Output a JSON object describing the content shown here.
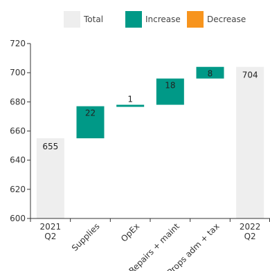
{
  "chart_data": {
    "type": "waterfall",
    "legend": {
      "position": "top",
      "items": [
        {
          "label": "Total",
          "color": "#eeeeee"
        },
        {
          "label": "Increase",
          "color": "#009987"
        },
        {
          "label": "Decrease",
          "color": "#f7941d"
        }
      ]
    },
    "ylim": [
      600,
      720
    ],
    "yticks": [
      600,
      620,
      640,
      660,
      680,
      700,
      720
    ],
    "grid": false,
    "steps": [
      {
        "label": "2021\nQ2",
        "kind": "total",
        "value": 655,
        "value_label": "655"
      },
      {
        "label": "Supplies",
        "kind": "increase",
        "value": 22,
        "value_label": "22"
      },
      {
        "label": "OpEx",
        "kind": "increase",
        "value": 1,
        "value_label": "1"
      },
      {
        "label": "Repairs + maint",
        "kind": "increase",
        "value": 18,
        "value_label": "18"
      },
      {
        "label": "Props adm + tax",
        "kind": "increase",
        "value": 8,
        "value_label": "8"
      },
      {
        "label": "2022\nQ2",
        "kind": "total",
        "value": 704,
        "value_label": "704"
      }
    ],
    "colors": {
      "total": "#eeeeee",
      "increase": "#009987",
      "decrease": "#f7941d",
      "axis": "#333333"
    }
  }
}
